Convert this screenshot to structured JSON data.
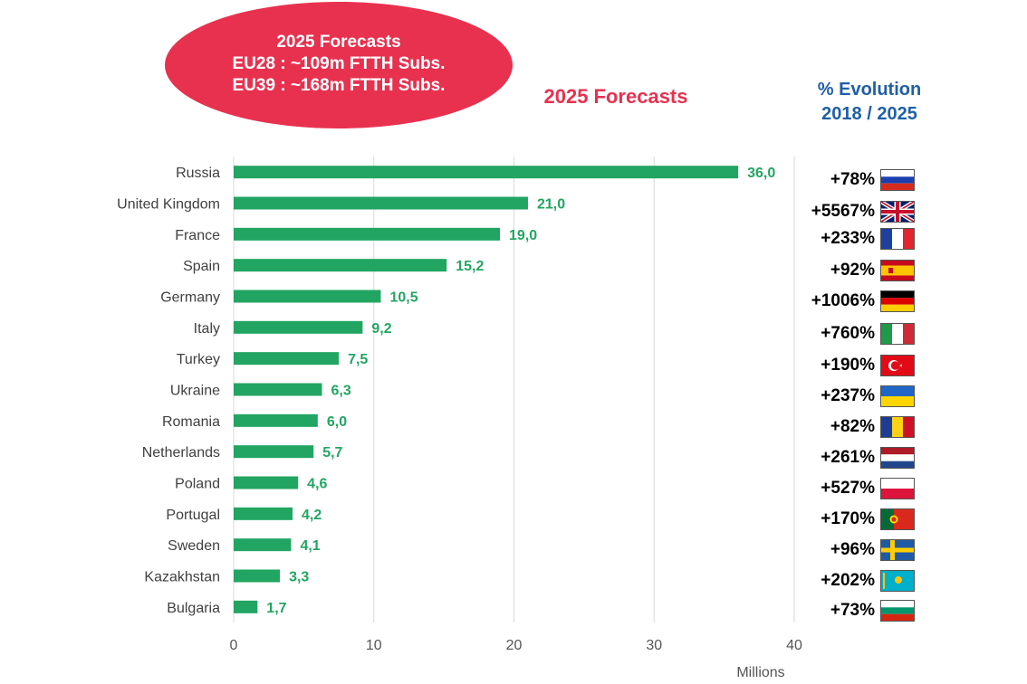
{
  "callout": {
    "line1": "2025 Forecasts",
    "line2": "EU28 : ~109m FTTH Subs.",
    "line3": "EU39 : ~168m FTTH Subs."
  },
  "evolution_header": {
    "line1": "% Evolution",
    "line2": "2018 / 2025"
  },
  "colors": {
    "bar": "#22a562",
    "callout": "#e8314f",
    "evolution_title": "#1f5fa8",
    "grid": "#d9d9d9"
  },
  "chart_data": {
    "type": "bar",
    "orientation": "horizontal",
    "title": "2025 Forecasts",
    "xlabel": "Millions",
    "xlim": [
      0,
      40
    ],
    "xticks": [
      0,
      10,
      20,
      30,
      40
    ],
    "grid": true,
    "categories": [
      "Russia",
      "United Kingdom",
      "France",
      "Spain",
      "Germany",
      "Italy",
      "Turkey",
      "Ukraine",
      "Romania",
      "Netherlands",
      "Poland",
      "Portugal",
      "Sweden",
      "Kazakhstan",
      "Bulgaria"
    ],
    "values": [
      36.0,
      21.0,
      19.0,
      15.2,
      10.5,
      9.2,
      7.5,
      6.3,
      6.0,
      5.7,
      4.6,
      4.2,
      4.1,
      3.3,
      1.7
    ],
    "value_labels": [
      "36,0",
      "21,0",
      "19,0",
      "15,2",
      "10,5",
      "9,2",
      "7,5",
      "6,3",
      "6,0",
      "5,7",
      "4,6",
      "4,2",
      "4,1",
      "3,3",
      "1,7"
    ]
  },
  "evolution": [
    {
      "country": "Russia",
      "pct": "+78%",
      "flag": "russia-flag-icon"
    },
    {
      "country": "United Kingdom",
      "pct": "+5567%",
      "flag": "uk-flag-icon"
    },
    {
      "country": "France",
      "pct": "+233%",
      "flag": "france-flag-icon"
    },
    {
      "country": "Spain",
      "pct": "+92%",
      "flag": "spain-flag-icon"
    },
    {
      "country": "Germany",
      "pct": "+1006%",
      "flag": "germany-flag-icon"
    },
    {
      "country": "Italy",
      "pct": "+760%",
      "flag": "italy-flag-icon"
    },
    {
      "country": "Turkey",
      "pct": "+190%",
      "flag": "turkey-flag-icon"
    },
    {
      "country": "Ukraine",
      "pct": "+237%",
      "flag": "ukraine-flag-icon"
    },
    {
      "country": "Romania",
      "pct": "+82%",
      "flag": "romania-flag-icon"
    },
    {
      "country": "Netherlands",
      "pct": "+261%",
      "flag": "netherlands-flag-icon"
    },
    {
      "country": "Poland",
      "pct": "+527%",
      "flag": "poland-flag-icon"
    },
    {
      "country": "Portugal",
      "pct": "+170%",
      "flag": "portugal-flag-icon"
    },
    {
      "country": "Sweden",
      "pct": "+96%",
      "flag": "sweden-flag-icon"
    },
    {
      "country": "Kazakhstan",
      "pct": "+202%",
      "flag": "kazakhstan-flag-icon"
    },
    {
      "country": "Bulgaria",
      "pct": "+73%",
      "flag": "bulgaria-flag-icon"
    }
  ]
}
